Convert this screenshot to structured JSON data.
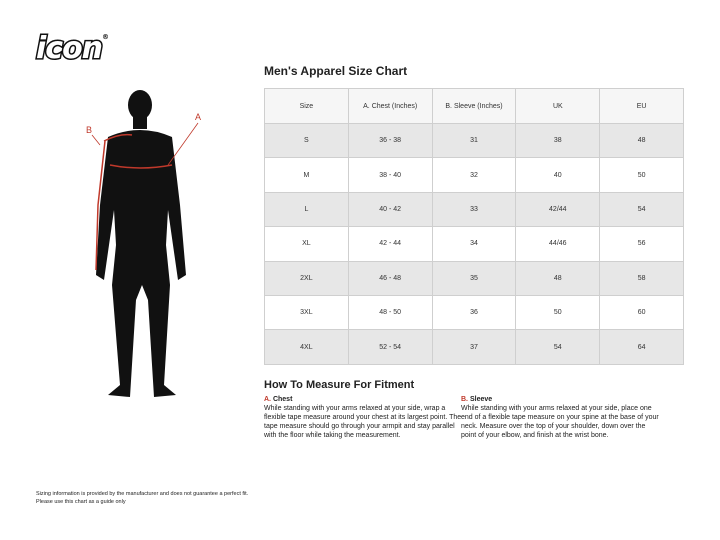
{
  "brand": {
    "logo": "icon",
    "mark": "®"
  },
  "figure": {
    "label_a": "A",
    "label_b": "B",
    "accent": "#c0392b"
  },
  "chart": {
    "title": "Men's Apparel Size Chart",
    "headers": [
      "Size",
      "A. Chest (Inches)",
      "B. Sleeve (Inches)",
      "UK",
      "EU"
    ],
    "rows": [
      [
        "S",
        "36 - 38",
        "31",
        "38",
        "48"
      ],
      [
        "M",
        "38 - 40",
        "32",
        "40",
        "50"
      ],
      [
        "L",
        "40 - 42",
        "33",
        "42/44",
        "54"
      ],
      [
        "XL",
        "42 - 44",
        "34",
        "44/46",
        "56"
      ],
      [
        "2XL",
        "46 - 48",
        "35",
        "48",
        "58"
      ],
      [
        "3XL",
        "48 - 50",
        "36",
        "50",
        "60"
      ],
      [
        "4XL",
        "52 - 54",
        "37",
        "54",
        "64"
      ]
    ]
  },
  "measure": {
    "title": "How To Measure For Fitment",
    "chest": {
      "letter": "A.",
      "name": "Chest",
      "text": "While standing with your arms relaxed at your side, wrap a flexible tape measure around your chest at its largest point. The tape measure should go through your armpit and stay parallel with the floor while taking the measurement."
    },
    "sleeve": {
      "letter": "B.",
      "name": "Sleeve",
      "text": "While standing with your arms relaxed at your side, place one end of a flexible tape measure on your spine at the base of your neck. Measure over the top of your shoulder, down over the point of your elbow, and finish at the wrist bone."
    }
  },
  "note": [
    "Sizing information is provided by the manufacturer and does not guarantee a perfect fit.",
    "Please use this chart as a guide only"
  ]
}
